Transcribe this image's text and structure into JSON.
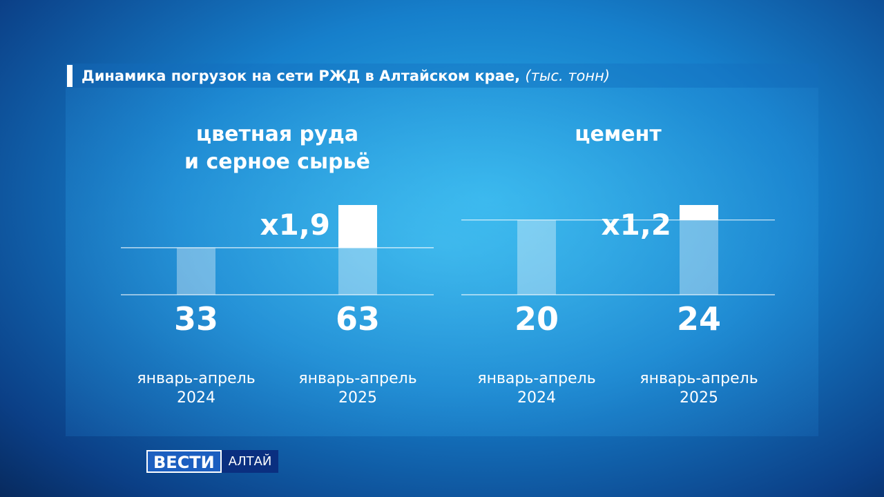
{
  "title": {
    "main": "Динамика погрузок на сети РЖД в Алтайском крае,",
    "unit": "(тыс. тонн)"
  },
  "chart_data": [
    {
      "type": "bar",
      "title_lines": [
        "цветная руда",
        "и серное сырьё"
      ],
      "categories": [
        "январь-апрель 2024",
        "январь-апрель 2025"
      ],
      "values": [
        33,
        63
      ],
      "annotation": "x1,9",
      "color": "#ffffff"
    },
    {
      "type": "bar",
      "title_lines": [
        "цемент"
      ],
      "categories": [
        "январь-апрель 2024",
        "январь-апрель 2025"
      ],
      "values": [
        20,
        24
      ],
      "annotation": "x1,2",
      "color": "#ffffff"
    }
  ],
  "logo": {
    "brand": "ВЕСТИ",
    "region": "АЛТАЙ"
  }
}
